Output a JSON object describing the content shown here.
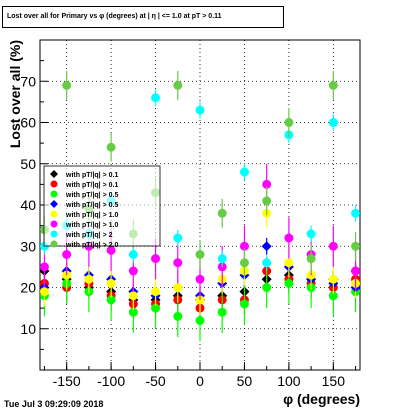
{
  "chart_data": {
    "type": "scatter",
    "title": "Lost over all for Primary vs φ (degrees) at | η | <= 1.0 at pT > 0.11",
    "xlabel": "φ (degrees)",
    "ylabel": "Lost over all (%)",
    "xlim": [
      -180,
      180
    ],
    "ylim": [
      0,
      80
    ],
    "xticks": [
      "-150",
      "-100",
      "-50",
      "0",
      "50",
      "100",
      "150"
    ],
    "yticks": [
      "10",
      "20",
      "30",
      "40",
      "50",
      "60",
      "70"
    ],
    "grid": true,
    "legend_position": "left-middle",
    "series": [
      {
        "name": "with pT/|q| > 0.1",
        "color": "#000000",
        "marker": "diamond",
        "x": [
          -175,
          -150,
          -125,
          -100,
          -75,
          -50,
          -25,
          0,
          25,
          50,
          75,
          100,
          125,
          150,
          175
        ],
        "y": [
          24,
          22,
          20,
          19,
          17,
          17,
          18,
          17,
          18,
          19,
          22,
          23,
          22,
          22,
          24
        ]
      },
      {
        "name": "with pT/|q| > 0.1",
        "color": "#ff0000",
        "marker": "circle",
        "x": [
          -175,
          -150,
          -125,
          -100,
          -75,
          -50,
          -25,
          0,
          25,
          50,
          75,
          100,
          125,
          150,
          175
        ],
        "y": [
          21,
          20,
          21,
          18,
          16,
          16,
          17,
          15,
          17,
          17,
          24,
          22,
          21,
          20,
          22
        ]
      },
      {
        "name": "with pT/|q| > 0.5",
        "color": "#00ff00",
        "marker": "circle",
        "x": [
          -175,
          -150,
          -125,
          -100,
          -75,
          -50,
          -25,
          0,
          25,
          50,
          75,
          100,
          125,
          150,
          175
        ],
        "y": [
          18,
          21,
          19,
          17,
          14,
          15,
          13,
          12,
          14,
          16,
          20,
          21,
          20,
          18,
          19
        ]
      },
      {
        "name": "with pT/|q| > 0.5",
        "color": "#0000ff",
        "marker": "diamond",
        "x": [
          -175,
          -150,
          -125,
          -100,
          -75,
          -50,
          -25,
          0,
          25,
          50,
          75,
          100,
          125,
          150,
          175
        ],
        "y": [
          20,
          24,
          23,
          22,
          19,
          18,
          20,
          18,
          21,
          23,
          30,
          25,
          22,
          21,
          20
        ]
      },
      {
        "name": "with pT/|q| > 1.0",
        "color": "#ffff00",
        "marker": "circle",
        "x": [
          -175,
          -150,
          -125,
          -100,
          -75,
          -50,
          -25,
          0,
          25,
          50,
          75,
          100,
          125,
          150,
          175
        ],
        "y": [
          19,
          23,
          22,
          21,
          18,
          19,
          20,
          17,
          22,
          24,
          38,
          26,
          23,
          22,
          21
        ]
      },
      {
        "name": "with pT/|q| > 1.0",
        "color": "#ff00ff",
        "marker": "circle",
        "x": [
          -175,
          -150,
          -125,
          -100,
          -75,
          -50,
          -25,
          0,
          25,
          50,
          75,
          100,
          125,
          150,
          175
        ],
        "y": [
          25,
          28,
          30,
          29,
          24,
          27,
          26,
          22,
          25,
          30,
          45,
          32,
          28,
          30,
          24
        ]
      },
      {
        "name": "with pT/|q| > 2",
        "color": "#00ffff",
        "marker": "circle",
        "x": [
          -175,
          -150,
          -125,
          -100,
          -75,
          -50,
          -25,
          0,
          25,
          50,
          75,
          100,
          125,
          150,
          175
        ],
        "y": [
          30,
          35,
          33,
          41,
          28,
          66,
          32,
          63,
          27,
          48,
          26,
          57,
          33,
          60,
          38
        ]
      },
      {
        "name": "with pT/|q| > 2.0",
        "color": "#66cc44",
        "marker": "circle",
        "x": [
          -175,
          -150,
          -125,
          -100,
          -75,
          -50,
          -25,
          0,
          25,
          50,
          75,
          100,
          125,
          150,
          175
        ],
        "y": [
          34,
          69,
          39,
          54,
          33,
          43,
          69,
          28,
          38,
          26,
          41,
          60,
          27,
          69,
          30
        ]
      }
    ]
  },
  "legend_entries": [
    "with pT/|q| > 0.1",
    "with pT/|q| > 0.1",
    "with pT/|q| > 0.5",
    "with pT/|q| > 0.5",
    "with pT/|q| > 1.0",
    "with pT/|q| > 1.0",
    "with pT/|q| > 2",
    "with pT/|q| > 2.0"
  ],
  "footer": "Tue Jul  3 09:29:09 2018"
}
